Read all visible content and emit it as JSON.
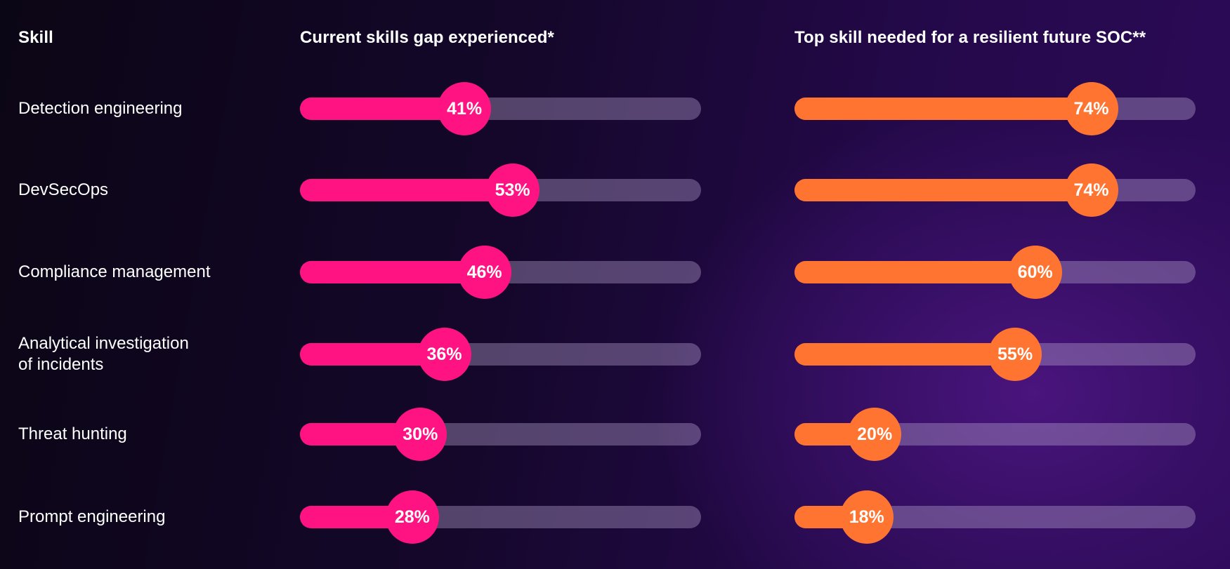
{
  "colors": {
    "current": "#ff1282",
    "future": "#ff7430"
  },
  "chart_data": {
    "type": "bar",
    "orientation": "horizontal",
    "header_skill": "Skill",
    "categories": [
      "Detection engineering",
      "DevSecOps",
      "Compliance management",
      "Analytical investigation\nof incidents",
      "Threat hunting",
      "Prompt engineering"
    ],
    "series": [
      {
        "name": "Current skills gap experienced*",
        "values": [
          41,
          53,
          46,
          36,
          30,
          28
        ],
        "labels": [
          "41%",
          "53%",
          "46%",
          "36%",
          "30%",
          "28%"
        ]
      },
      {
        "name": "Top skill needed for a resilient future SOC**",
        "values": [
          74,
          74,
          60,
          55,
          20,
          18
        ],
        "labels": [
          "74%",
          "74%",
          "60%",
          "55%",
          "20%",
          "18%"
        ]
      }
    ],
    "xlim": [
      0,
      100
    ]
  }
}
